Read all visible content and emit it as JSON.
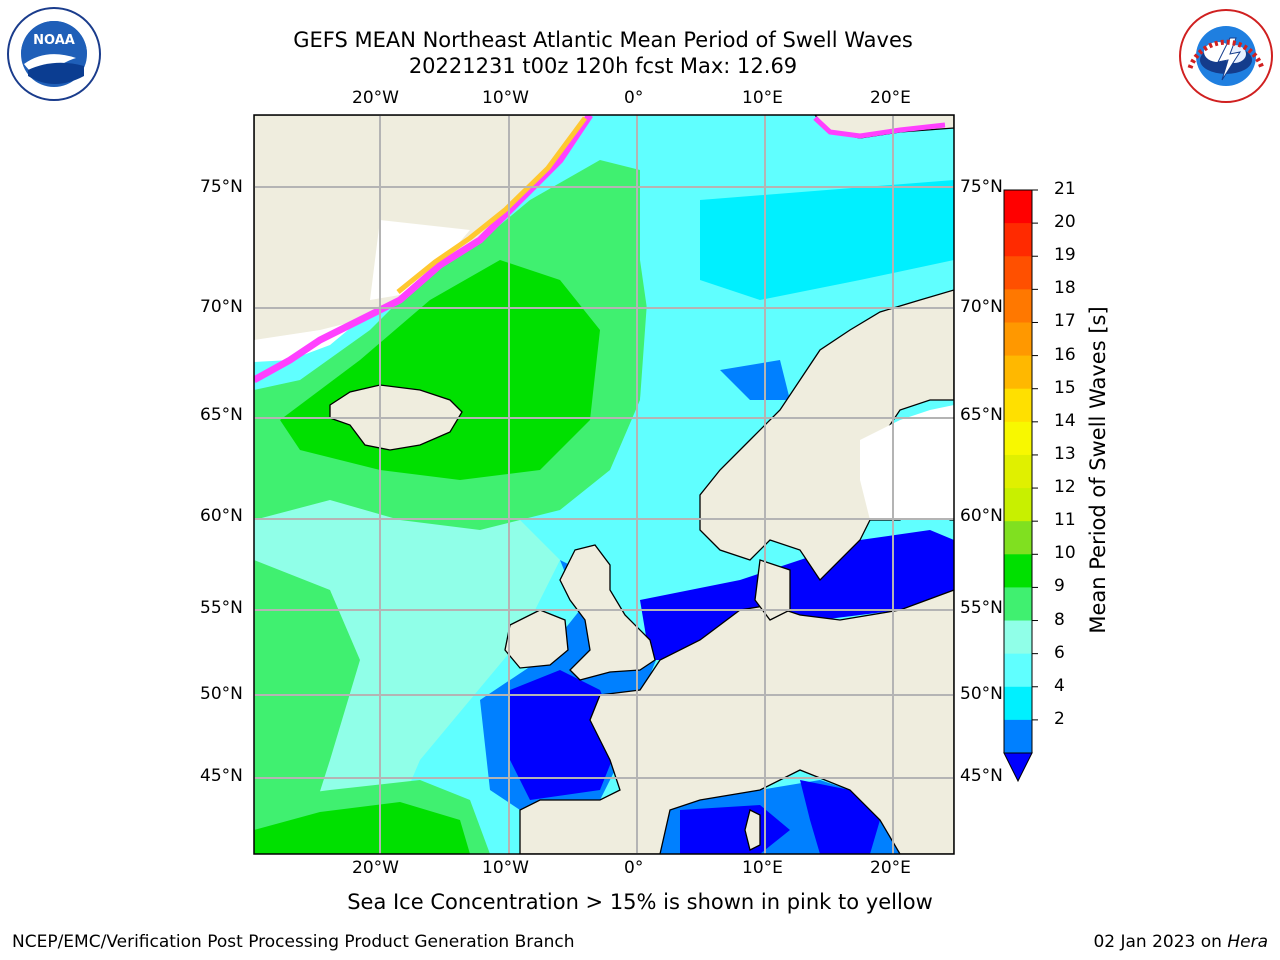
{
  "header": {
    "title_line1": "GEFS MEAN Northeast Atlantic Mean Period of Swell Waves",
    "title_line2": "20221231 t00z 120h fcst   Max: 12.69"
  },
  "map": {
    "lon_labels_top": [
      "20°W",
      "10°W",
      "0°",
      "10°E",
      "20°E"
    ],
    "lon_labels_bottom": [
      "20°W",
      "10°W",
      "0°",
      "10°E",
      "20°E"
    ],
    "lat_labels_left": [
      "75°N",
      "70°N",
      "65°N",
      "60°N",
      "55°N",
      "50°N",
      "45°N"
    ],
    "lat_labels_right": [
      "75°N",
      "70°N",
      "65°N",
      "60°N",
      "55°N",
      "50°N",
      "45°N"
    ]
  },
  "colorbar": {
    "title": "Mean Period of Swell Waves [s]",
    "ticks": [
      "21",
      "20",
      "19",
      "18",
      "17",
      "16",
      "15",
      "14",
      "13",
      "12",
      "11",
      "10",
      "9",
      "8",
      "6",
      "4",
      "2"
    ],
    "colors": [
      "#ff0000",
      "#ff2a00",
      "#ff5000",
      "#ff7800",
      "#ff9800",
      "#ffb800",
      "#ffe000",
      "#f8f800",
      "#e0f000",
      "#c8f000",
      "#80e020",
      "#00e000",
      "#40f070",
      "#90ffe8",
      "#60ffff",
      "#00f0ff",
      "#0080ff"
    ],
    "underflow_color": "#0000ff"
  },
  "colors": {
    "land": "#efedde",
    "ice_edge_pink": "#ff40ff",
    "ice_edge_yellow": "#ffc830",
    "grid": "#b4b4b4"
  },
  "logos": {
    "left": "NOAA",
    "right": "NATIONAL WEATHER SERVICE"
  },
  "notes": {
    "sea_ice": "Sea Ice Concentration > 15% is shown in pink to yellow"
  },
  "footer": {
    "left": "NCEP/EMC/Verification Post Processing Product Generation Branch",
    "right_date": "02 Jan 2023 on ",
    "right_host": "Hera"
  }
}
